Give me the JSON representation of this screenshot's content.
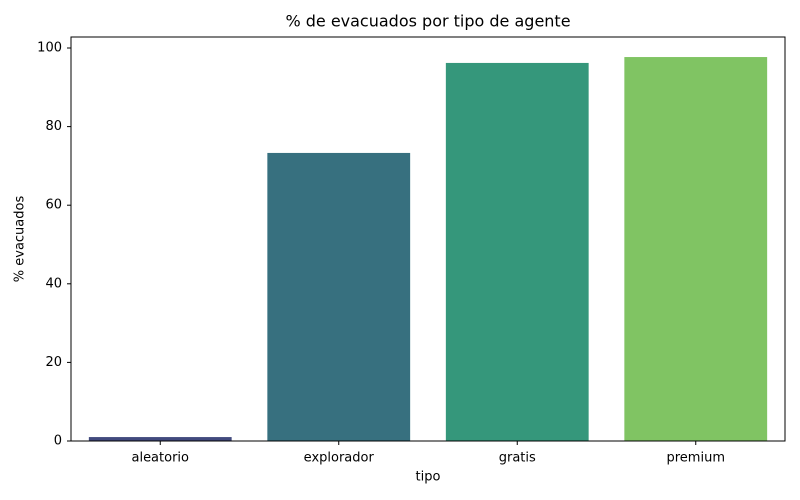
{
  "chart_data": {
    "type": "bar",
    "title": "% de evacuados por tipo de agente",
    "x_label": "tipo",
    "y_label": "% evacuados",
    "categories": [
      "aleatorio",
      "explorador",
      "gratis",
      "premium"
    ],
    "values": [
      1.0,
      73.3,
      96.2,
      97.7
    ],
    "colors": [
      "#424a7e",
      "#37707f",
      "#35977b",
      "#80c463"
    ],
    "ylim": [
      0,
      102.8
    ],
    "yticks": [
      0,
      20,
      40,
      60,
      80,
      100
    ],
    "grid": false
  }
}
